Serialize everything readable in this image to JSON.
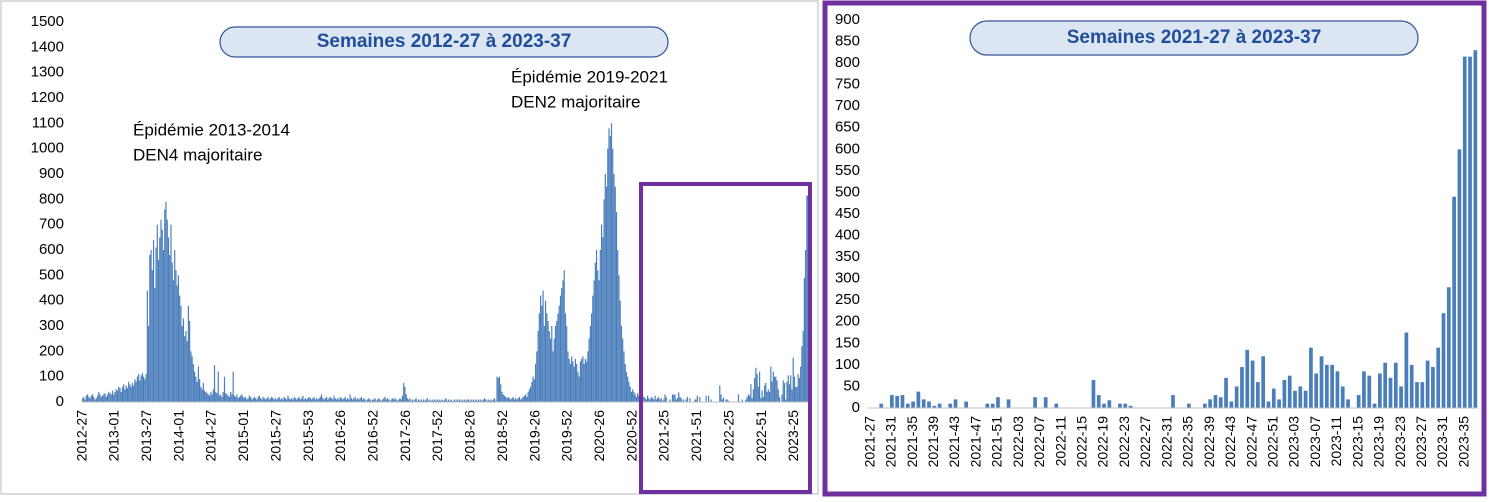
{
  "chart_data": [
    {
      "type": "bar",
      "title": "Semaines 2012-27 à 2023-37",
      "color": "#4a7ebb",
      "annotations": [
        "Épidémie 2013-2014",
        "DEN4 majoritaire",
        "Épidémie 2019-2021",
        "DEN2 majoritaire"
      ],
      "ylim": [
        0,
        1500
      ],
      "yticks": [
        0,
        100,
        200,
        300,
        400,
        500,
        600,
        700,
        800,
        900,
        1000,
        1100,
        1200,
        1300,
        1400,
        1500
      ],
      "categories": [
        "2012-27",
        null,
        null,
        null,
        null,
        null,
        null,
        null,
        null,
        null,
        null,
        null,
        null,
        null,
        null,
        null,
        null,
        null,
        null,
        null,
        null,
        null,
        null,
        null,
        null,
        null,
        "2013-01",
        null,
        null,
        null,
        null,
        null,
        null,
        null,
        null,
        null,
        null,
        null,
        null,
        null,
        null,
        null,
        null,
        null,
        null,
        null,
        null,
        null,
        null,
        null,
        null,
        null,
        "2013-27",
        null,
        null,
        null,
        null,
        null,
        null,
        null,
        null,
        null,
        null,
        null,
        null,
        null,
        null,
        null,
        null,
        null,
        null,
        null,
        null,
        null,
        null,
        null,
        null,
        null,
        "2014-01",
        null,
        null,
        null,
        null,
        null,
        null,
        null,
        null,
        null,
        null,
        null,
        null,
        null,
        null,
        null,
        null,
        null,
        null,
        null,
        null,
        null,
        null,
        null,
        null,
        null,
        "2014-27",
        null,
        null,
        null,
        null,
        null,
        null,
        null,
        null,
        null,
        null,
        null,
        null,
        null,
        null,
        null,
        null,
        null,
        null,
        null,
        null,
        null,
        null,
        null,
        null,
        null,
        "2015-01",
        null,
        null,
        null,
        null,
        null,
        null,
        null,
        null,
        null,
        null,
        null,
        null,
        null,
        null,
        null,
        null,
        null,
        null,
        null,
        null,
        null,
        null,
        null,
        null,
        null,
        "2015-27",
        null,
        null,
        null,
        null,
        null,
        null,
        null,
        null,
        null,
        null,
        null,
        null,
        null,
        null,
        null,
        null,
        null,
        null,
        null,
        null,
        null,
        null,
        null,
        null,
        null,
        "2015-53",
        null,
        null,
        null,
        null,
        null,
        null,
        null,
        null,
        null,
        null,
        null,
        null,
        null,
        null,
        null,
        null,
        null,
        null,
        null,
        null,
        null,
        null,
        null,
        null,
        null,
        "2016-26",
        null,
        null,
        null,
        null,
        null,
        null,
        null,
        null,
        null,
        null,
        null,
        null,
        null,
        null,
        null,
        null,
        null,
        null,
        null,
        null,
        null,
        null,
        null,
        null,
        null,
        "2016-52",
        null,
        null,
        null,
        null,
        null,
        null,
        null,
        null,
        null,
        null,
        null,
        null,
        null,
        null,
        null,
        null,
        null,
        null,
        null,
        null,
        null,
        null,
        null,
        null,
        null,
        "2017-26",
        null,
        null,
        null,
        null,
        null,
        null,
        null,
        null,
        null,
        null,
        null,
        null,
        null,
        null,
        null,
        null,
        null,
        null,
        null,
        null,
        null,
        null,
        null,
        null,
        null,
        "2017-52",
        null,
        null,
        null,
        null,
        null,
        null,
        null,
        null,
        null,
        null,
        null,
        null,
        null,
        null,
        null,
        null,
        null,
        null,
        null,
        null,
        null,
        null,
        null,
        null,
        null,
        "2018-26",
        null,
        null,
        null,
        null,
        null,
        null,
        null,
        null,
        null,
        null,
        null,
        null,
        null,
        null,
        null,
        null,
        null,
        null,
        null,
        null,
        null,
        null,
        null,
        null,
        null,
        "2018-52",
        null,
        null,
        null,
        null,
        null,
        null,
        null,
        null,
        null,
        null,
        null,
        null,
        null,
        null,
        null,
        null,
        null,
        null,
        null,
        null,
        null,
        null,
        null,
        null,
        null,
        "2019-26",
        null,
        null,
        null,
        null,
        null,
        null,
        null,
        null,
        null,
        null,
        null,
        null,
        null,
        null,
        null,
        null,
        null,
        null,
        null,
        null,
        null,
        null,
        null,
        null,
        null,
        "2019-52",
        null,
        null,
        null,
        null,
        null,
        null,
        null,
        null,
        null,
        null,
        null,
        null,
        null,
        null,
        null,
        null,
        null,
        null,
        null,
        null,
        null,
        null,
        null,
        null,
        null,
        "2020-26",
        null,
        null,
        null,
        null,
        null,
        null,
        null,
        null,
        null,
        null,
        null,
        null,
        null,
        null,
        null,
        null,
        null,
        null,
        null,
        null,
        null,
        null,
        null,
        null,
        null,
        "2020-52",
        null,
        null,
        null,
        null,
        null,
        null,
        null,
        null,
        null,
        null,
        null,
        null,
        null,
        null,
        null,
        null,
        null,
        null,
        null,
        null,
        null,
        null,
        null,
        null,
        null,
        "2021-25",
        null,
        null,
        null,
        null,
        null,
        null,
        null,
        null,
        null,
        null,
        null,
        null,
        null,
        null,
        null,
        null,
        null,
        null,
        null,
        null,
        null,
        null,
        null,
        null,
        null,
        "2021-51",
        null,
        null,
        null,
        null,
        null,
        null,
        null,
        null,
        null,
        null,
        null,
        null,
        null,
        null,
        null,
        null,
        null,
        null,
        null,
        null,
        null,
        null,
        null,
        null,
        null,
        "2022-25",
        null,
        null,
        null,
        null,
        null,
        null,
        null,
        null,
        null,
        null,
        null,
        null,
        null,
        null,
        null,
        null,
        null,
        null,
        null,
        null,
        null,
        null,
        null,
        null,
        null,
        "2022-51",
        null,
        null,
        null,
        null,
        null,
        null,
        null,
        null,
        null,
        null,
        null,
        null,
        null,
        null,
        null,
        null,
        null,
        null,
        null,
        null,
        null,
        null,
        null,
        null,
        null,
        "2023-25",
        null,
        null,
        null,
        null,
        null,
        null,
        null,
        null,
        null,
        null,
        null,
        null
      ],
      "values": [
        15,
        20,
        10,
        25,
        30,
        20,
        15,
        25,
        30,
        20,
        10,
        15,
        25,
        40,
        30,
        20,
        25,
        30,
        35,
        20,
        30,
        40,
        35,
        30,
        45,
        30,
        40,
        50,
        45,
        60,
        55,
        40,
        60,
        70,
        50,
        65,
        55,
        80,
        70,
        60,
        75,
        65,
        90,
        80,
        100,
        110,
        85,
        105,
        115,
        100,
        90,
        110,
        440,
        300,
        580,
        600,
        520,
        640,
        450,
        610,
        700,
        560,
        650,
        720,
        680,
        600,
        760,
        790,
        720,
        650,
        580,
        700,
        550,
        480,
        600,
        520,
        460,
        500,
        420,
        380,
        300,
        330,
        260,
        280,
        240,
        380,
        320,
        200,
        180,
        150,
        120,
        100,
        80,
        140,
        90,
        60,
        50,
        75,
        45,
        40,
        35,
        30,
        25,
        40,
        30,
        50,
        145,
        40,
        35,
        120,
        25,
        30,
        20,
        40,
        100,
        35,
        30,
        25,
        20,
        40,
        30,
        120,
        25,
        20,
        30,
        15,
        20,
        25,
        30,
        20,
        15,
        20,
        10,
        15,
        25,
        20,
        10,
        15,
        20,
        15,
        10,
        20,
        25,
        15,
        10,
        20,
        15,
        10,
        15,
        20,
        10,
        15,
        20,
        15,
        10,
        15,
        10,
        15,
        20,
        10,
        15,
        10,
        20,
        15,
        10,
        25,
        15,
        10,
        15,
        10,
        20,
        15,
        10,
        15,
        20,
        10,
        15,
        25,
        10,
        15,
        10,
        15,
        20,
        15,
        10,
        15,
        20,
        10,
        15,
        10,
        15,
        20,
        30,
        15,
        10,
        15,
        20,
        10,
        15,
        20,
        15,
        10,
        25,
        15,
        10,
        15,
        10,
        20,
        15,
        10,
        15,
        20,
        10,
        15,
        10,
        30,
        15,
        10,
        15,
        20,
        10,
        15,
        10,
        15,
        20,
        10,
        15,
        10,
        5,
        10,
        15,
        10,
        5,
        10,
        10,
        15,
        5,
        10,
        15,
        10,
        5,
        10,
        15,
        20,
        10,
        15,
        10,
        5,
        10,
        15,
        10,
        15,
        10,
        5,
        10,
        15,
        10,
        25,
        75,
        60,
        30,
        15,
        10,
        15,
        5,
        10,
        5,
        10,
        15,
        5,
        10,
        5,
        10,
        5,
        10,
        5,
        10,
        15,
        5,
        10,
        5,
        10,
        5,
        10,
        5,
        10,
        5,
        10,
        5,
        10,
        5,
        10,
        15,
        5,
        10,
        5,
        10,
        5,
        5,
        10,
        5,
        10,
        5,
        10,
        5,
        10,
        5,
        10,
        5,
        10,
        10,
        5,
        10,
        5,
        10,
        5,
        10,
        5,
        10,
        5,
        10,
        5,
        10,
        15,
        10,
        5,
        10,
        5,
        10,
        5,
        10,
        15,
        5,
        100,
        95,
        100,
        70,
        40,
        30,
        25,
        20,
        15,
        20,
        15,
        10,
        15,
        20,
        10,
        15,
        10,
        15,
        20,
        10,
        15,
        20,
        25,
        30,
        20,
        40,
        50,
        60,
        80,
        100,
        90,
        150,
        200,
        280,
        350,
        420,
        380,
        440,
        300,
        400,
        350,
        320,
        280,
        250,
        300,
        200,
        250,
        300,
        320,
        350,
        380,
        420,
        450,
        480,
        520,
        350,
        300,
        200,
        170,
        150,
        180,
        160,
        140,
        170,
        150,
        120,
        100,
        160,
        170,
        180,
        150,
        170,
        160,
        200,
        250,
        300,
        350,
        420,
        480,
        550,
        600,
        520,
        480,
        600,
        700,
        650,
        800,
        900,
        850,
        1000,
        1080,
        1050,
        1100,
        1000,
        900,
        850,
        750,
        600,
        500,
        400,
        300,
        250,
        200,
        150,
        120,
        100,
        80,
        60,
        40,
        50,
        40,
        30,
        20,
        35,
        25,
        20,
        15,
        30,
        20,
        15,
        10,
        25,
        15,
        10,
        20,
        15,
        10,
        25,
        10,
        15,
        20,
        10,
        15,
        5,
        10,
        30,
        20,
        0,
        0,
        10,
        0,
        30,
        28,
        30,
        10,
        15,
        38,
        20,
        15,
        5,
        10,
        0,
        10,
        20,
        0,
        15,
        0,
        0,
        0,
        10,
        10,
        25,
        0,
        20,
        0,
        0,
        0,
        0,
        25,
        0,
        25,
        0,
        10,
        0,
        0,
        0,
        0,
        0,
        0,
        65,
        30,
        10,
        18,
        0,
        10,
        10,
        5,
        0,
        0,
        0,
        0,
        0,
        0,
        0,
        30,
        0,
        0,
        10,
        0,
        0,
        10,
        20,
        30,
        25,
        70,
        15,
        50,
        95,
        135,
        110,
        60,
        120,
        15,
        45,
        20,
        65,
        75,
        40,
        50,
        40,
        140,
        80,
        120,
        100,
        100,
        85,
        50,
        20,
        0,
        30,
        85,
        75,
        10,
        80,
        105,
        70,
        105,
        50,
        175,
        100,
        60,
        60,
        110,
        95,
        140,
        220,
        280,
        490,
        600,
        815,
        815,
        830
      ]
    },
    {
      "type": "bar",
      "title": "Semaines 2021-27 à 2023-37",
      "color": "#4a7ebb",
      "ylim": [
        0,
        900
      ],
      "yticks": [
        0,
        50,
        100,
        150,
        200,
        250,
        300,
        350,
        400,
        450,
        500,
        550,
        600,
        650,
        700,
        750,
        800,
        850,
        900
      ],
      "categories": [
        "2021-27",
        null,
        null,
        null,
        "2021-31",
        null,
        null,
        null,
        "2021-35",
        null,
        null,
        null,
        "2021-39",
        null,
        null,
        null,
        "2021-43",
        null,
        null,
        null,
        "2021-47",
        null,
        null,
        null,
        "2021-51",
        null,
        null,
        null,
        "2022-03",
        null,
        null,
        null,
        "2022-07",
        null,
        null,
        null,
        "2022-11",
        null,
        null,
        null,
        "2022-15",
        null,
        null,
        null,
        "2022-19",
        null,
        null,
        null,
        "2022-23",
        null,
        null,
        null,
        "2022-27",
        null,
        null,
        null,
        "2022-31",
        null,
        null,
        null,
        "2022-35",
        null,
        null,
        null,
        "2022-39",
        null,
        null,
        null,
        "2022-43",
        null,
        null,
        null,
        "2022-47",
        null,
        null,
        null,
        "2022-51",
        null,
        null,
        null,
        "2023-03",
        null,
        null,
        null,
        "2023-07",
        null,
        null,
        null,
        "2023-11",
        null,
        null,
        null,
        "2023-15",
        null,
        null,
        null,
        "2023-19",
        null,
        null,
        null,
        "2023-23",
        null,
        null,
        null,
        "2023-27",
        null,
        null,
        null,
        "2023-31",
        null,
        null,
        null,
        "2023-35",
        null,
        null
      ],
      "values": [
        0,
        0,
        10,
        0,
        30,
        28,
        30,
        10,
        15,
        38,
        20,
        15,
        5,
        10,
        0,
        10,
        20,
        0,
        15,
        0,
        0,
        0,
        10,
        10,
        25,
        0,
        20,
        0,
        0,
        0,
        0,
        25,
        0,
        25,
        0,
        10,
        0,
        0,
        0,
        0,
        0,
        0,
        65,
        30,
        10,
        18,
        0,
        10,
        10,
        5,
        0,
        0,
        0,
        0,
        0,
        0,
        0,
        30,
        0,
        0,
        10,
        0,
        0,
        10,
        20,
        30,
        25,
        70,
        15,
        50,
        95,
        135,
        110,
        60,
        120,
        15,
        45,
        20,
        65,
        75,
        40,
        50,
        40,
        140,
        80,
        120,
        100,
        100,
        85,
        50,
        20,
        0,
        30,
        85,
        75,
        10,
        80,
        105,
        70,
        105,
        50,
        175,
        100,
        60,
        60,
        110,
        95,
        140,
        220,
        280,
        490,
        600,
        815,
        815,
        830
      ]
    }
  ]
}
